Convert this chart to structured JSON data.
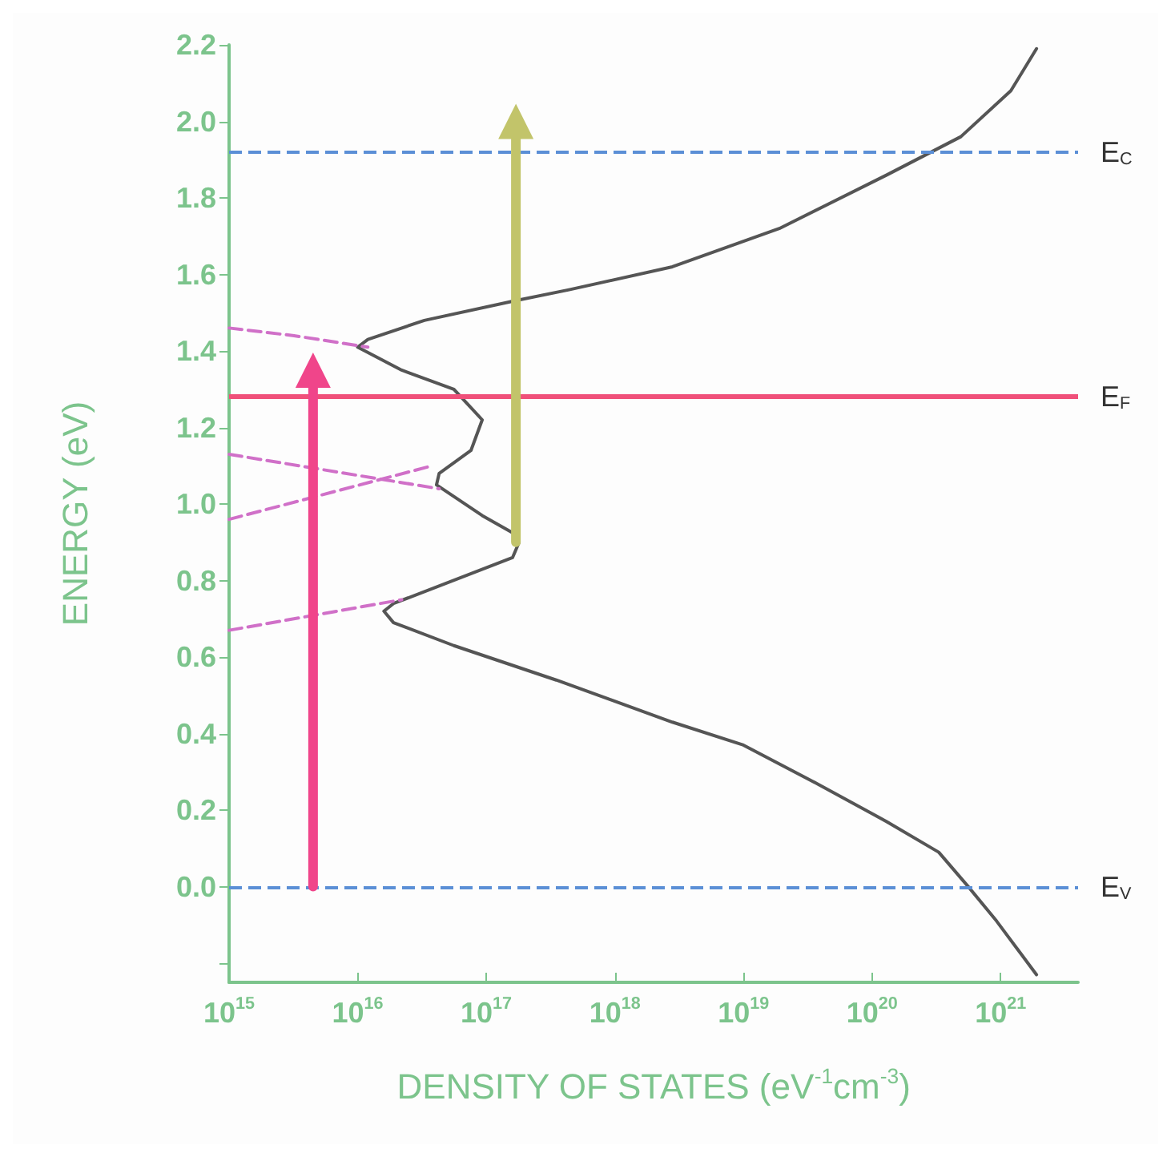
{
  "chart_data": {
    "type": "line",
    "xlabel": "DENSITY OF STATES (eV$^{-1}$cm$^{-3}$)",
    "ylabel": "ENERGY (eV)",
    "log": "x",
    "grid": false,
    "xlim": [
      1000000000000000.0,
      4e+21
    ],
    "xticks": [
      {
        "value": 1000000000000000.0,
        "label": "10$^{15}$"
      },
      {
        "value": 1e+16,
        "label": "10$^{16}$"
      },
      {
        "value": 1e+17,
        "label": "10$^{17}$"
      },
      {
        "value": 1e+18,
        "label": "10$^{18}$"
      },
      {
        "value": 1e+19,
        "label": "10$^{19}$"
      },
      {
        "value": 1e+20,
        "label": "10$^{20}$"
      },
      {
        "value": 1e+21,
        "label": "10$^{21}$"
      }
    ],
    "ylim": [
      -0.25,
      2.2
    ],
    "yticks": [
      {
        "value": -0.2,
        "label": null
      },
      {
        "value": 0,
        "label": "0.0"
      },
      {
        "value": 0.2,
        "label": "0.2"
      },
      {
        "value": 0.4,
        "label": "0.4"
      },
      {
        "value": 0.6,
        "label": "0.6"
      },
      {
        "value": 0.8,
        "label": "0.8"
      },
      {
        "value": 1,
        "label": "1.0"
      },
      {
        "value": 1.2,
        "label": "1.2"
      },
      {
        "value": 1.4,
        "label": "1.4"
      },
      {
        "value": 1.6,
        "label": "1.6"
      },
      {
        "value": 1.8,
        "label": "1.8"
      },
      {
        "value": 2,
        "label": "2.0"
      },
      {
        "value": 2.2,
        "label": "2.2"
      }
    ],
    "series": [
      {
        "color": "#555555",
        "line_style": "solid",
        "x": [
          1.9e+21,
          1.2e+21,
          4.9e+20,
          1.3e+20,
          1.9e+19,
          2.8e+18,
          4.4e+17,
          1.6e+17,
          3.3e+16,
          1.2e+16,
          1e+16,
          2.2e+16,
          5.6e+16,
          9.3e+16,
          7.6e+16,
          4.3e+16,
          4.1e+16,
          9.3e+16,
          1.7e+17,
          1.8e+17,
          1.6e+17,
          1.9e+16,
          1.6e+16,
          1.9e+16,
          5.6e+16,
          3.5e+17,
          2.8e+18,
          1e+19,
          3.7e+19,
          1.3e+20,
          3.3e+20,
          5.6e+20,
          9.3e+20,
          1.9e+21
        ],
        "values": [
          2.19,
          2.08,
          1.96,
          1.86,
          1.72,
          1.62,
          1.56,
          1.53,
          1.48,
          1.43,
          1.41,
          1.35,
          1.3,
          1.22,
          1.14,
          1.08,
          1.05,
          0.97,
          0.92,
          0.9,
          0.86,
          0.74,
          0.72,
          0.69,
          0.63,
          0.54,
          0.43,
          0.37,
          0.27,
          0.17,
          0.09,
          0,
          -0.09,
          -0.23
        ]
      },
      {
        "color": "#d070c8",
        "line_style": "dashed",
        "x": [
          1000000000000000.0,
          3200000000000000.0,
          1.2e+16
        ],
        "values": [
          1.46,
          1.44,
          1.41
        ]
      },
      {
        "color": "#d070c8",
        "line_style": "dashed",
        "x": [
          1000000000000000.0,
          4.3e+16
        ],
        "values": [
          1.13,
          1.04
        ]
      },
      {
        "color": "#d070c8",
        "line_style": "dashed",
        "x": [
          1000000000000000.0,
          3.8e+16
        ],
        "values": [
          0.96,
          1.1
        ]
      },
      {
        "color": "#d070c8",
        "line_style": "dashed",
        "x": [
          1000000000000000.0,
          2.2e+16
        ],
        "values": [
          0.67,
          0.75
        ]
      },
      {
        "color": "#f0458a",
        "line_style": "solid",
        "marker": "triangle",
        "x": [
          4500000000000000.0,
          4500000000000000.0
        ],
        "values": [
          0,
          1.35
        ]
      },
      {
        "color": "#c2c46a",
        "line_style": "solid",
        "marker": "triangle",
        "x": [
          1.7e+17,
          1.7e+17
        ],
        "values": [
          0.9,
          2.0
        ]
      }
    ],
    "ref_lines": [
      {
        "axis": "y",
        "value": 1.92,
        "label": "E$_{C}$",
        "color": "#5b8fd6",
        "line_style": "dashed"
      },
      {
        "axis": "y",
        "value": 0,
        "label": "E$_{V}$",
        "color": "#5b8fd6",
        "line_style": "dashed"
      },
      {
        "axis": "y",
        "value": 1.28,
        "label": "E$_{F}$",
        "color": "#f0507a",
        "line_style": "solid"
      }
    ]
  }
}
